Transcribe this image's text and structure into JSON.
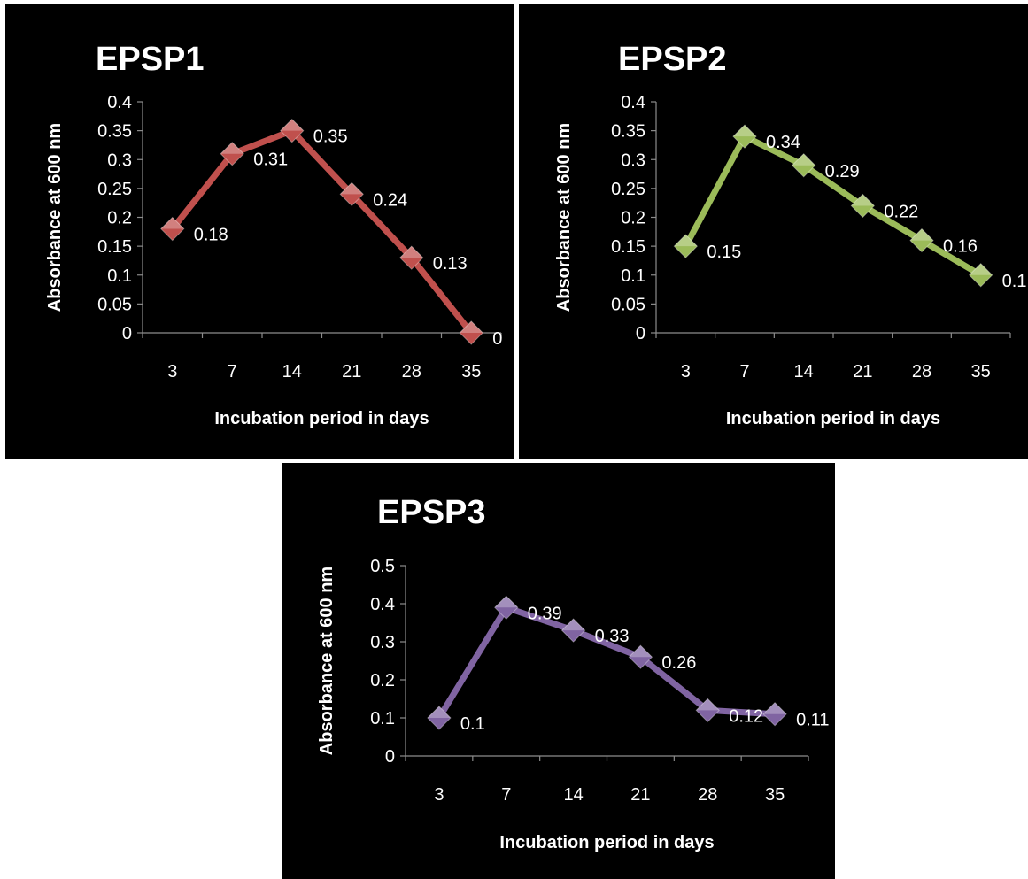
{
  "chart_data": [
    {
      "type": "line",
      "title": "EPSP1",
      "xlabel": "Incubation period in days",
      "ylabel": "Absorbance at 600 nm",
      "categories": [
        "3",
        "7",
        "14",
        "21",
        "28",
        "35"
      ],
      "ylim": [
        0,
        0.4
      ],
      "yticks": [
        "0",
        "0.05",
        "0.1",
        "0.15",
        "0.2",
        "0.25",
        "0.3",
        "0.35",
        "0.4"
      ],
      "grid": false,
      "legend": "none",
      "series": [
        {
          "values": [
            0.18,
            0.31,
            0.35,
            0.24,
            0.13,
            0
          ],
          "labels": [
            "0.18",
            "0.31",
            "0.35",
            "0.24",
            "0.13",
            "0"
          ],
          "color": "#c0504d"
        }
      ]
    },
    {
      "type": "line",
      "title": "EPSP2",
      "xlabel": "Incubation period in days",
      "ylabel": "Absorbance at 600 nm",
      "categories": [
        "3",
        "7",
        "14",
        "21",
        "28",
        "35"
      ],
      "ylim": [
        0,
        0.4
      ],
      "yticks": [
        "0",
        "0.05",
        "0.1",
        "0.15",
        "0.2",
        "0.25",
        "0.3",
        "0.35",
        "0.4"
      ],
      "grid": false,
      "legend": "none",
      "series": [
        {
          "values": [
            0.15,
            0.34,
            0.29,
            0.22,
            0.16,
            0.1
          ],
          "labels": [
            "0.15",
            "0.34",
            "0.29",
            "0.22",
            "0.16",
            "0.1"
          ],
          "color": "#9bbb59"
        }
      ]
    },
    {
      "type": "line",
      "title": "EPSP3",
      "xlabel": "Incubation period in days",
      "ylabel": "Absorbance at 600 nm",
      "categories": [
        "3",
        "7",
        "14",
        "21",
        "28",
        "35"
      ],
      "ylim": [
        0,
        0.5
      ],
      "yticks": [
        "0",
        "0.1",
        "0.2",
        "0.3",
        "0.4",
        "0.5"
      ],
      "grid": false,
      "legend": "none",
      "series": [
        {
          "values": [
            0.1,
            0.39,
            0.33,
            0.26,
            0.12,
            0.11
          ],
          "labels": [
            "0.1",
            "0.39",
            "0.33",
            "0.26",
            "0.12",
            "0.11"
          ],
          "color": "#8064a2"
        }
      ]
    }
  ]
}
